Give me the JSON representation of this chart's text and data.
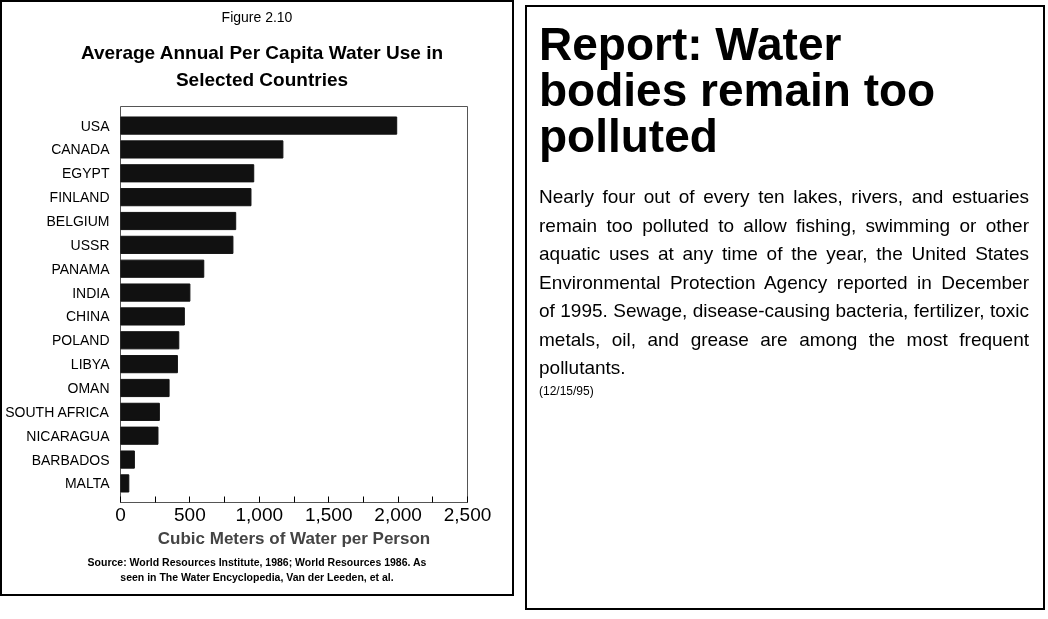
{
  "chart_data": [
    {
      "type": "bar",
      "orientation": "horizontal",
      "subtitle": "Figure 2.10",
      "title": "Average Annual Per Capita Water Use in Selected Countries",
      "xlabel": "Cubic Meters of Water per Person",
      "categories": [
        "USA",
        "CANADA",
        "EGYPT",
        "FINLAND",
        "BELGIUM",
        "USSR",
        "PANAMA",
        "INDIA",
        "CHINA",
        "POLAND",
        "LIBYA",
        "OMAN",
        "SOUTH AFRICA",
        "NICARAGUA",
        "BARBADOS",
        "MALTA"
      ],
      "values": [
        1990,
        1170,
        960,
        940,
        830,
        810,
        600,
        500,
        460,
        420,
        410,
        350,
        280,
        270,
        100,
        60
      ],
      "color": "#111111",
      "xlim": [
        0,
        2500
      ],
      "xticks": [
        0,
        {
          "value": 250,
          "label": null
        },
        500,
        {
          "value": 750,
          "label": null
        },
        {
          "value": 1000,
          "label": "1,000"
        },
        {
          "value": 1250,
          "label": null
        },
        {
          "value": 1500,
          "label": "1,500"
        },
        {
          "value": 1750,
          "label": null
        },
        {
          "value": 2000,
          "label": "2,000"
        },
        {
          "value": 2250,
          "label": null
        },
        {
          "value": 2500,
          "label": "2,500"
        }
      ],
      "annotations": [
        "Source: World Resources Institute, 1986; World Resources 1986. As seen in The Water Encyclopedia, Van der Leeden, et al."
      ]
    },
    {
      "type": "other",
      "title": "Report: Water bodies remain too polluted",
      "annotations": [
        "Nearly four out of every ten lakes, rivers, and estuaries remain too polluted to allow fishing, swimming or other aquatic uses at any time of the year, the United States Environmental Protection Agency reported in December of 1995. Sewage, disease-causing bacteria, fertilizer, toxic metals, oil, and grease are among the most frequent pollutants.",
        "(12/15/95)"
      ]
    }
  ]
}
